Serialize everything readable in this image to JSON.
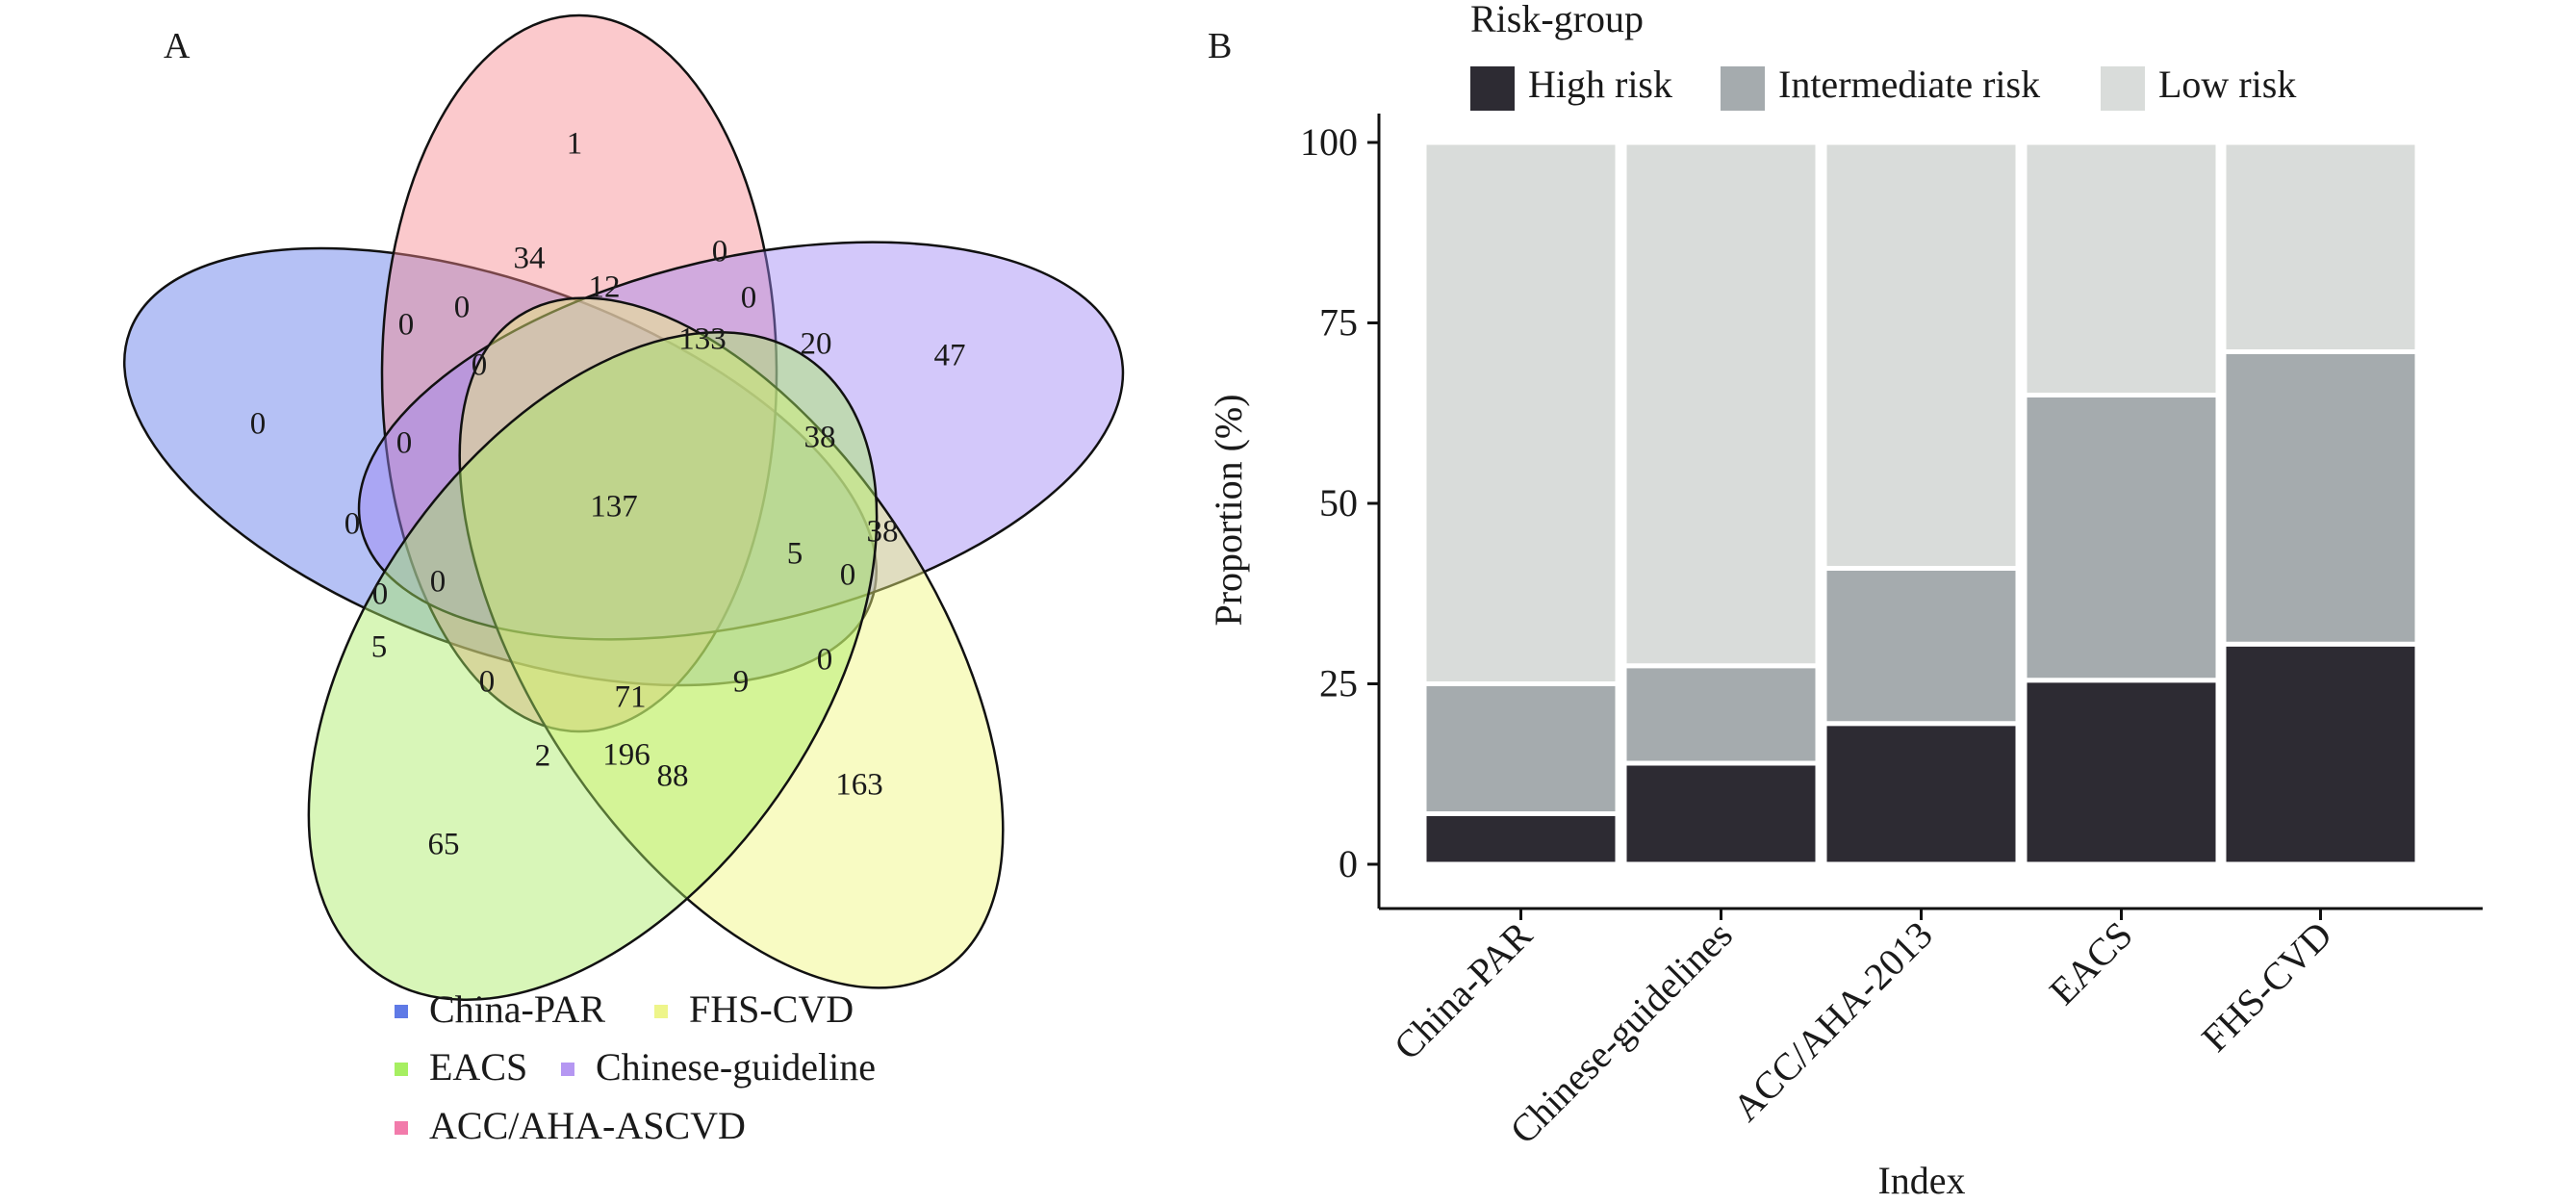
{
  "panel_a": {
    "label": "A",
    "sets": [
      {
        "name": "China-PAR",
        "color": "#5f7ae6",
        "fill": "#5a76e8"
      },
      {
        "name": "FHS-CVD",
        "color": "#eef58a",
        "fill": "#f0f77a"
      },
      {
        "name": "EACS",
        "color": "#a6ef61",
        "fill": "#a8ec62"
      },
      {
        "name": "Chinese-guideline",
        "color": "#b597f2",
        "fill": "#9d86f4"
      },
      {
        "name": "ACC/AHA-ASCVD",
        "color": "#f27bab",
        "fill": "#f7888f"
      }
    ],
    "region_counts": [
      {
        "id": "china-par-only",
        "value": "0"
      },
      {
        "id": "acc-aha-only",
        "value": "1"
      },
      {
        "id": "chinese-guideline-only",
        "value": "47"
      },
      {
        "id": "fhs-cvd-only",
        "value": "163"
      },
      {
        "id": "eacs-only",
        "value": "65"
      },
      {
        "id": "r34",
        "value": "34"
      },
      {
        "id": "r0a",
        "value": "0"
      },
      {
        "id": "r12",
        "value": "12"
      },
      {
        "id": "r0b",
        "value": "0"
      },
      {
        "id": "r0c",
        "value": "0"
      },
      {
        "id": "r133",
        "value": "133"
      },
      {
        "id": "r20",
        "value": "20"
      },
      {
        "id": "r0d",
        "value": "0"
      },
      {
        "id": "r0e",
        "value": "0"
      },
      {
        "id": "r38a",
        "value": "38"
      },
      {
        "id": "r0f",
        "value": "0"
      },
      {
        "id": "r137",
        "value": "137"
      },
      {
        "id": "r38b",
        "value": "38"
      },
      {
        "id": "r0g",
        "value": "0"
      },
      {
        "id": "r5a",
        "value": "5"
      },
      {
        "id": "r0h",
        "value": "0"
      },
      {
        "id": "r0i",
        "value": "0"
      },
      {
        "id": "r0j",
        "value": "0"
      },
      {
        "id": "r5b",
        "value": "5"
      },
      {
        "id": "r0k",
        "value": "0"
      },
      {
        "id": "r71",
        "value": "71"
      },
      {
        "id": "r9",
        "value": "9"
      },
      {
        "id": "r0l",
        "value": "0"
      },
      {
        "id": "r2",
        "value": "2"
      },
      {
        "id": "r196",
        "value": "196"
      },
      {
        "id": "r88",
        "value": "88"
      }
    ]
  },
  "chart_data": [
    {
      "type": "bar",
      "subtype": "stacked",
      "panel_label": "B",
      "legend_title": "Risk-group",
      "legend_position": "top",
      "categories": [
        "China-PAR",
        "Chinese-guidelines",
        "ACC/AHA-2013",
        "EACS",
        "FHS-CVD"
      ],
      "series": [
        {
          "name": "High risk",
          "color": "#2d2b33",
          "values": [
            7,
            14,
            19.5,
            25.5,
            30.5
          ]
        },
        {
          "name": "Intermediate risk",
          "color": "#a5abae",
          "values": [
            18,
            13.5,
            21.5,
            39.5,
            40.5
          ]
        },
        {
          "name": "Low risk",
          "color": "#d9dcda",
          "values": [
            75,
            72.5,
            59,
            35,
            29
          ]
        }
      ],
      "xlabel": "Index",
      "ylabel": "Proportion (%)",
      "ylim": [
        0,
        100
      ],
      "yticks": [
        "0",
        "25",
        "50",
        "75",
        "100"
      ],
      "grid": false
    }
  ]
}
